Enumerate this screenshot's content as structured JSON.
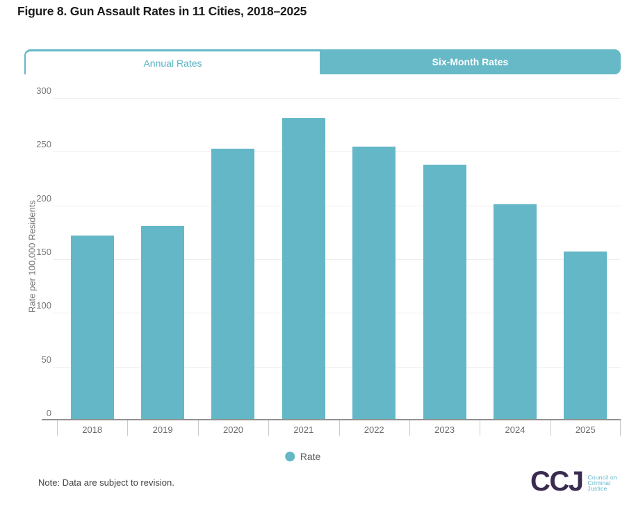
{
  "header": {
    "title": "Figure 8. Gun Assault Rates in 11 Cities, 2018–2025"
  },
  "tabs": [
    {
      "label": "Annual Rates",
      "active": true
    },
    {
      "label": "Six-Month Rates",
      "active": false
    }
  ],
  "chart_data": {
    "type": "bar",
    "title": "Figure 8. Gun Assault Rates in 11 Cities, 2018–2025",
    "categories": [
      "2018",
      "2019",
      "2020",
      "2021",
      "2022",
      "2023",
      "2024",
      "2025"
    ],
    "series": [
      {
        "name": "Rate",
        "values": [
          172,
          181,
          253,
          281,
          255,
          238,
          201,
          157
        ]
      }
    ],
    "xlabel": "",
    "ylabel": "Rate per 100,000 Residents",
    "ylim": [
      0,
      300
    ],
    "yticks": [
      0,
      50,
      100,
      150,
      200,
      250,
      300
    ],
    "grid": "horizontal",
    "legend": {
      "position": "bottom",
      "items": [
        "Rate"
      ]
    },
    "bar_color": "#63b7c6"
  },
  "footer": {
    "note": "Note: Data are subject to revision.",
    "logo": {
      "acronym": "CCJ",
      "lines": [
        "Council on",
        "Criminal",
        "Justice"
      ]
    }
  },
  "colors": {
    "teal": "#64b8c7",
    "bar_teal": "#63b7c6",
    "ccj_purple": "#3a2b50",
    "grid": "#eeeeee",
    "axis": "#919191"
  }
}
